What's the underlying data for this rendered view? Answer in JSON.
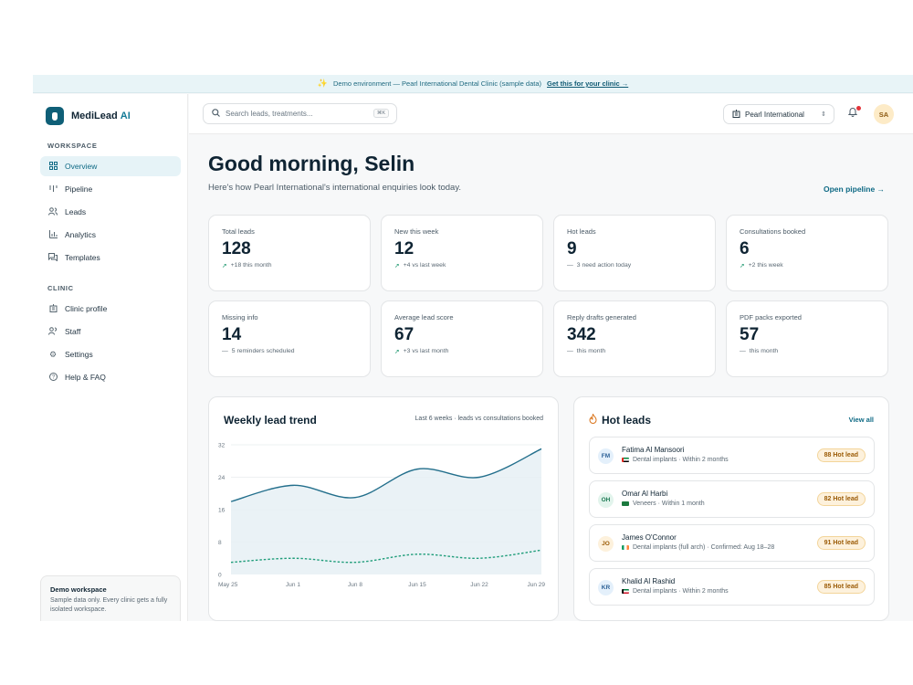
{
  "banner": {
    "text": "Demo environment — Pearl International Dental Clinic (sample data)",
    "link": "Get this for your clinic →"
  },
  "brand": {
    "name": "MediLead",
    "suffix": "AI"
  },
  "sidebar": {
    "workspace_label": "WORKSPACE",
    "workspace_items": [
      {
        "label": "Overview",
        "icon": "grid-icon",
        "active": true
      },
      {
        "label": "Pipeline",
        "icon": "pipeline-icon"
      },
      {
        "label": "Leads",
        "icon": "users-icon"
      },
      {
        "label": "Analytics",
        "icon": "bar-chart-icon"
      },
      {
        "label": "Templates",
        "icon": "message-icon"
      }
    ],
    "clinic_label": "CLINIC",
    "clinic_items": [
      {
        "label": "Clinic profile",
        "icon": "building-icon"
      },
      {
        "label": "Staff",
        "icon": "users-icon"
      },
      {
        "label": "Settings",
        "icon": "gear-icon"
      },
      {
        "label": "Help & FAQ",
        "icon": "help-icon"
      }
    ],
    "demo_card": {
      "title": "Demo workspace",
      "text": "Sample data only. Every clinic gets a fully isolated workspace."
    }
  },
  "topbar": {
    "search_placeholder": "Search leads, treatments...",
    "search_shortcut": "⌘K",
    "clinic_name": "Pearl International",
    "avatar_initials": "SA"
  },
  "main": {
    "greeting": "Good morning, Selin",
    "subtitle": "Here's how Pearl International's international enquiries look today.",
    "open_pipeline": "Open pipeline →"
  },
  "stats": [
    {
      "label": "Total leads",
      "value": "128",
      "sub": "+18 this month",
      "trend": "up"
    },
    {
      "label": "New this week",
      "value": "12",
      "sub": "+4 vs last week",
      "trend": "up"
    },
    {
      "label": "Hot leads",
      "value": "9",
      "sub": "3 need action today",
      "trend": "flat"
    },
    {
      "label": "Consultations booked",
      "value": "6",
      "sub": "+2 this week",
      "trend": "up"
    },
    {
      "label": "Missing info",
      "value": "14",
      "sub": "5 reminders scheduled",
      "trend": "flat"
    },
    {
      "label": "Average lead score",
      "value": "67",
      "sub": "+3 vs last month",
      "trend": "up"
    },
    {
      "label": "Reply drafts generated",
      "value": "342",
      "sub": "this month",
      "trend": "flat"
    },
    {
      "label": "PDF packs exported",
      "value": "57",
      "sub": "this month",
      "trend": "flat"
    }
  ],
  "trend_panel": {
    "title": "Weekly lead trend",
    "note": "Last 6 weeks · leads vs consultations booked"
  },
  "chart_data": {
    "type": "area",
    "x": [
      "May 25",
      "Jun 1",
      "Jun 8",
      "Jun 15",
      "Jun 22",
      "Jun 29"
    ],
    "series": [
      {
        "values": [
          18,
          22,
          19,
          26,
          24,
          31
        ],
        "color": "#236f8c",
        "fill": true
      },
      {
        "values": [
          3,
          4,
          3,
          5,
          4,
          6
        ],
        "color": "#1f9d7a",
        "dashed": true
      }
    ],
    "ylim": [
      0,
      32
    ],
    "yticks": [
      0,
      8,
      16,
      24,
      32
    ],
    "grid": true
  },
  "hot_panel": {
    "title": "Hot leads",
    "view_all": "View all",
    "leads": [
      {
        "initials": "FM",
        "name": "Fatima Al Mansoori",
        "detail": "Dental implants · Within 2 months",
        "badge": "88  Hot lead",
        "av_bg": "#e4f0fb",
        "av_fg": "#2a5f95",
        "flag": "uae"
      },
      {
        "initials": "OH",
        "name": "Omar Al Harbi",
        "detail": "Veneers · Within 1 month",
        "badge": "82  Hot lead",
        "av_bg": "#e2f4ec",
        "av_fg": "#1d7a54",
        "flag": "saudi"
      },
      {
        "initials": "JO",
        "name": "James O'Connor",
        "detail": "Dental implants (full arch) · Confirmed: Aug 18–28",
        "badge": "91  Hot lead",
        "av_bg": "#fdf1dc",
        "av_fg": "#9b5b06",
        "flag": "ireland"
      },
      {
        "initials": "KR",
        "name": "Khalid Al Rashid",
        "detail": "Dental implants · Within 2 months",
        "badge": "85  Hot lead",
        "av_bg": "#e4f0fb",
        "av_fg": "#2a5f95",
        "flag": "kuwait"
      }
    ]
  }
}
